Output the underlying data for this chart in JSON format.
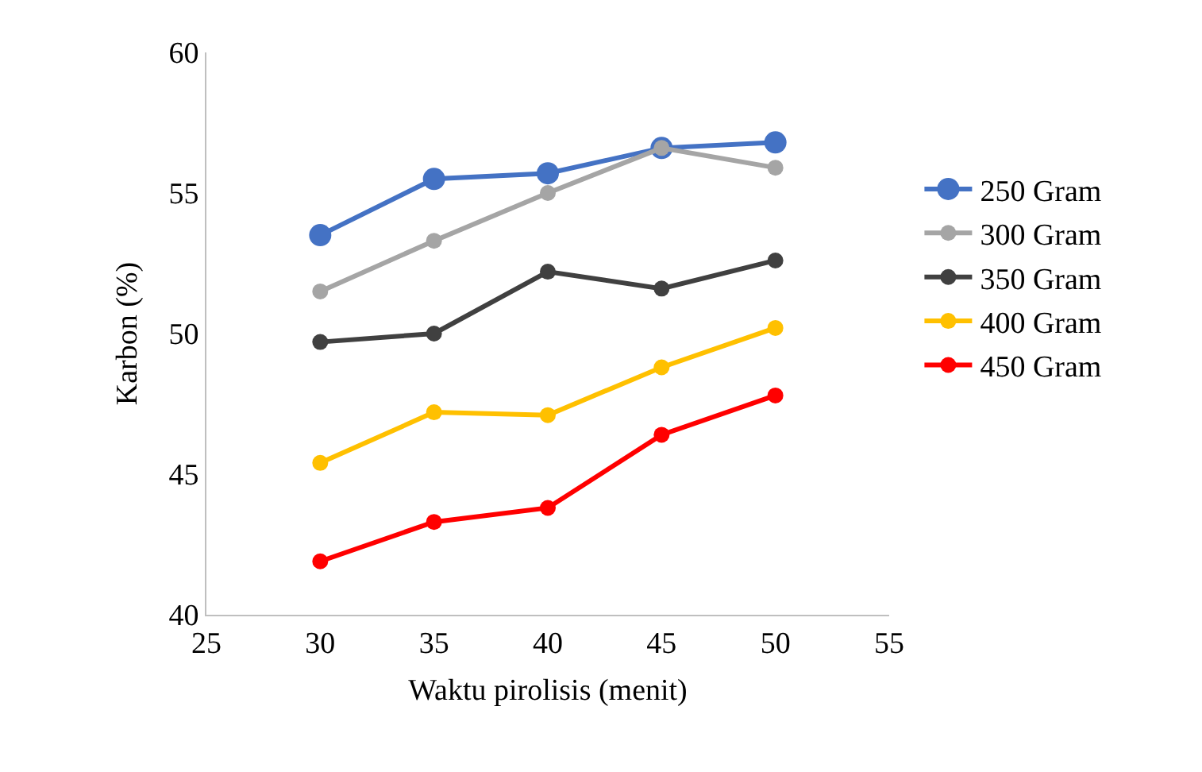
{
  "chart_data": {
    "type": "line",
    "xlabel": "Waktu pirolisis (menit)",
    "ylabel": "Karbon (%)",
    "x": [
      30,
      35,
      40,
      45,
      50
    ],
    "series": [
      {
        "name": "250 Gram",
        "color": "#4472c4",
        "values": [
          53.5,
          55.5,
          55.7,
          56.6,
          56.8
        ]
      },
      {
        "name": "300 Gram",
        "color": "#a5a5a5",
        "values": [
          51.5,
          53.3,
          55.0,
          56.6,
          55.9
        ]
      },
      {
        "name": "350 Gram",
        "color": "#404040",
        "values": [
          49.7,
          50.0,
          52.2,
          51.6,
          52.6
        ]
      },
      {
        "name": "400 Gram",
        "color": "#ffc000",
        "values": [
          45.4,
          47.2,
          47.1,
          48.8,
          50.2
        ]
      },
      {
        "name": "450 Gram",
        "color": "#ff0000",
        "values": [
          41.9,
          43.3,
          43.8,
          46.4,
          47.8
        ]
      }
    ],
    "xlim": [
      25,
      55
    ],
    "xticks": [
      25,
      30,
      35,
      40,
      45,
      50,
      55
    ],
    "ylim": [
      40,
      60
    ],
    "yticks": [
      40,
      45,
      50,
      55,
      60
    ],
    "grid": false,
    "legend": "right",
    "marker": "circle",
    "line_style": "solid"
  }
}
